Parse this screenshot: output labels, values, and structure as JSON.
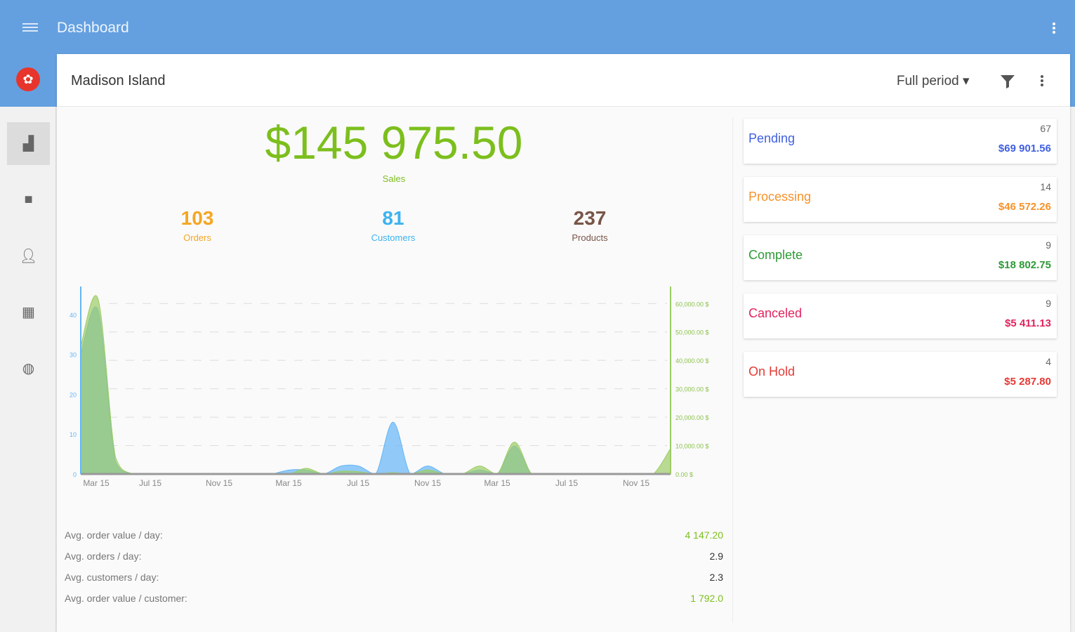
{
  "header": {
    "title": "Dashboard"
  },
  "store": {
    "name": "Madison Island",
    "period": "Full period ▾"
  },
  "summary": {
    "sales": "$145 975.50",
    "sales_label": "Sales",
    "kpis": [
      {
        "value": "103",
        "label": "Orders",
        "color": "#f5a623"
      },
      {
        "value": "81",
        "label": "Customers",
        "color": "#3db3ef"
      },
      {
        "value": "237",
        "label": "Products",
        "color": "#795548"
      }
    ]
  },
  "statuses": [
    {
      "name": "Pending",
      "count": "67",
      "amount": "$69 901.56",
      "color": "#3f5fe0"
    },
    {
      "name": "Processing",
      "count": "14",
      "amount": "$46 572.26",
      "color": "#f7922a"
    },
    {
      "name": "Complete",
      "count": "9",
      "amount": "$18 802.75",
      "color": "#2e9a36"
    },
    {
      "name": "Canceled",
      "count": "9",
      "amount": "$5 411.13",
      "color": "#e0245e"
    },
    {
      "name": "On Hold",
      "count": "4",
      "amount": "$5 287.80",
      "color": "#e53935"
    }
  ],
  "stats": [
    {
      "label": "Avg. order value / day:",
      "value": "4 147.20"
    },
    {
      "label": "Avg. orders / day:",
      "value": "2.9"
    },
    {
      "label": "Avg. customers / day:",
      "value": "2.3"
    },
    {
      "label": "Avg. order value / customer:",
      "value": "1 792.0"
    }
  ],
  "chart_data": {
    "type": "area",
    "x_ticks": [
      "Mar 15",
      "Jul 15",
      "Nov 15",
      "Mar 15",
      "Jul 15",
      "Nov 15",
      "Mar 15",
      "Jul 15",
      "Nov 15"
    ],
    "y_left_ticks": [
      "0",
      "10",
      "20",
      "30",
      "40"
    ],
    "ylim_left": [
      0,
      47
    ],
    "y_right_ticks": [
      "0.00 $",
      "10,000.00 $",
      "20,000.00 $",
      "30,000.00 $",
      "40,000.00 $",
      "50,000.00 $",
      "60,000.00 $"
    ],
    "ylim_right": [
      0,
      66000
    ],
    "series": [
      {
        "name": "Orders",
        "axis": "left",
        "color": "#64b5f6",
        "values": [
          30,
          41,
          3,
          0,
          0,
          0,
          0,
          0,
          0,
          0,
          0,
          0,
          1,
          1,
          0,
          2,
          2,
          0,
          13,
          0,
          2,
          0,
          0,
          1,
          0,
          7,
          0,
          0,
          0,
          0,
          0,
          0,
          0,
          0,
          0
        ]
      },
      {
        "name": "Sales",
        "axis": "right",
        "color": "#9ccc65",
        "values": [
          45000,
          61535,
          6000,
          0,
          0,
          0,
          0,
          0,
          0,
          0,
          0,
          0,
          0,
          2000,
          0,
          1000,
          800,
          0,
          500,
          0,
          1410,
          0,
          0,
          2814,
          0,
          11250,
          0,
          0,
          0,
          0,
          0,
          0,
          0,
          0,
          9000
        ]
      }
    ]
  }
}
